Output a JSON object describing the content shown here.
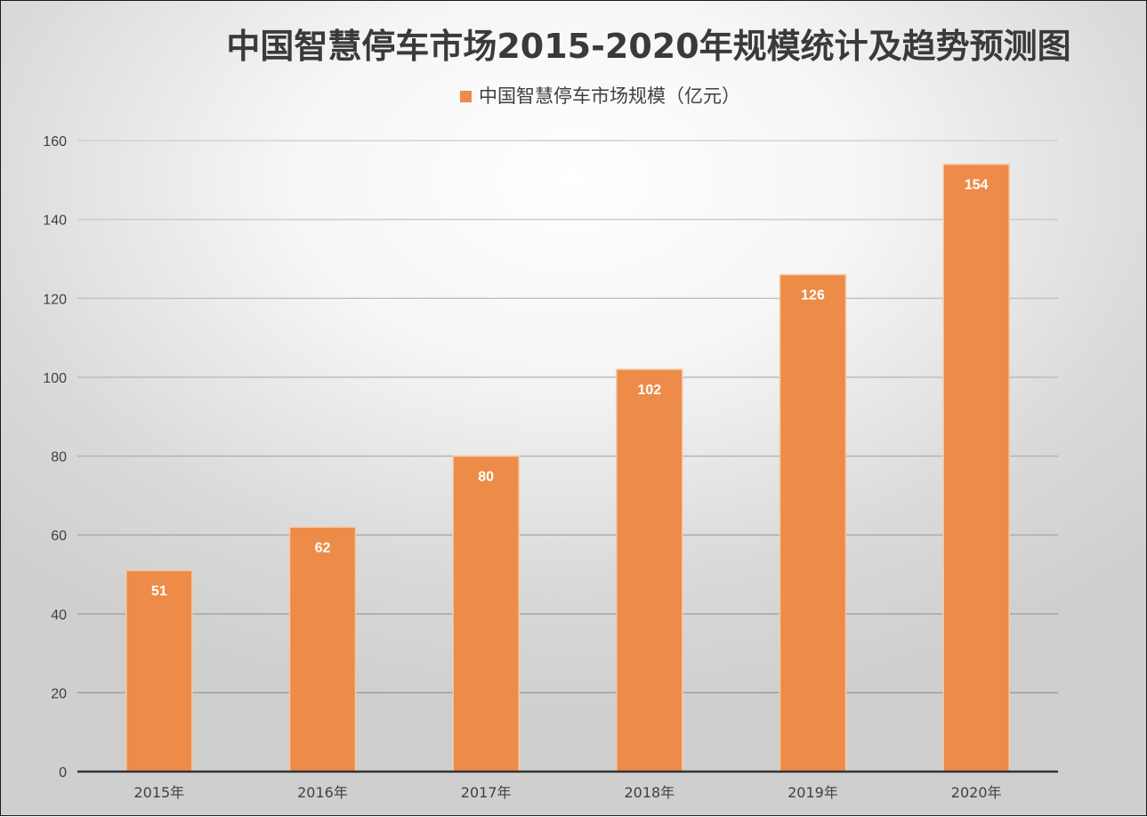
{
  "chart_data": {
    "type": "bar",
    "title": "中国智慧停车市场2015-2020年规模统计及趋势预测图",
    "legend_position": "top",
    "categories": [
      "2015年",
      "2016年",
      "2017年",
      "2018年",
      "2019年",
      "2020年"
    ],
    "series": [
      {
        "name": "中国智慧停车市场规模（亿元）",
        "values": [
          51,
          62,
          80,
          102,
          126,
          154
        ],
        "color": "#ed8b48"
      }
    ],
    "ylim": [
      0,
      160
    ],
    "yticks": [
      0,
      20,
      40,
      60,
      80,
      100,
      120,
      140,
      160
    ],
    "grid": true,
    "data_labels": true,
    "xlabel": "",
    "ylabel": ""
  }
}
